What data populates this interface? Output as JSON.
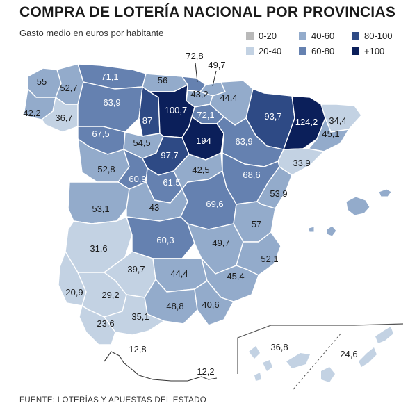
{
  "title": "COMPRA DE LOTERÍA NACIONAL POR PROVINCIAS",
  "subtitle": "Gasto medio en euros por habitante",
  "source": "FUENTE: LOTERÍAS Y APUESTAS DEL ESTADO",
  "legend": [
    {
      "label": "0-20",
      "color": "#b9b9b9"
    },
    {
      "label": "20-40",
      "color": "#c3d2e3"
    },
    {
      "label": "40-60",
      "color": "#93abcb"
    },
    {
      "label": "60-80",
      "color": "#6581b0"
    },
    {
      "label": "80-100",
      "color": "#2e4a85"
    },
    {
      "label": "+100",
      "color": "#0b1f5a"
    }
  ],
  "colors": {
    "sea": "#ffffff",
    "border": "#ffffff",
    "canary_frame": "#555555"
  },
  "regions": [
    {
      "id": "a-coruna",
      "value": "55",
      "bin": "40-60"
    },
    {
      "id": "lugo",
      "value": "52,7",
      "bin": "40-60"
    },
    {
      "id": "pontevedra",
      "value": "42,2",
      "bin": "40-60"
    },
    {
      "id": "ourense",
      "value": "36,7",
      "bin": "20-40"
    },
    {
      "id": "asturias",
      "value": "71,1",
      "bin": "60-80"
    },
    {
      "id": "cantabria",
      "value": "56",
      "bin": "40-60"
    },
    {
      "id": "bizkaia",
      "value": "72,8",
      "bin": "60-80"
    },
    {
      "id": "gipuzkoa",
      "value": "49,7",
      "bin": "40-60"
    },
    {
      "id": "alava",
      "value": "43,2",
      "bin": "40-60"
    },
    {
      "id": "navarra",
      "value": "44,4",
      "bin": "40-60"
    },
    {
      "id": "leon",
      "value": "63,9",
      "bin": "60-80"
    },
    {
      "id": "palencia",
      "value": "87",
      "bin": "80-100"
    },
    {
      "id": "burgos",
      "value": "100,7",
      "bin": "+100"
    },
    {
      "id": "la-rioja",
      "value": "72,1",
      "bin": "60-80"
    },
    {
      "id": "huesca",
      "value": "93,7",
      "bin": "80-100"
    },
    {
      "id": "lleida",
      "value": "124,2",
      "bin": "+100"
    },
    {
      "id": "girona",
      "value": "34,4",
      "bin": "20-40"
    },
    {
      "id": "barcelona",
      "value": "45,1",
      "bin": "40-60"
    },
    {
      "id": "zamora",
      "value": "67,5",
      "bin": "60-80"
    },
    {
      "id": "valladolid",
      "value": "54,5",
      "bin": "40-60"
    },
    {
      "id": "soria",
      "value": "194",
      "bin": "+100"
    },
    {
      "id": "zaragoza",
      "value": "63,9",
      "bin": "60-80"
    },
    {
      "id": "tarragona",
      "value": "33,9",
      "bin": "20-40"
    },
    {
      "id": "segovia",
      "value": "97,7",
      "bin": "80-100"
    },
    {
      "id": "salamanca",
      "value": "52,8",
      "bin": "40-60"
    },
    {
      "id": "avila",
      "value": "60,9",
      "bin": "60-80"
    },
    {
      "id": "madrid",
      "value": "61,5",
      "bin": "60-80"
    },
    {
      "id": "guadalajara",
      "value": "42,5",
      "bin": "40-60"
    },
    {
      "id": "teruel",
      "value": "68,6",
      "bin": "60-80"
    },
    {
      "id": "castellon",
      "value": "53,9",
      "bin": "40-60"
    },
    {
      "id": "caceres",
      "value": "53,1",
      "bin": "40-60"
    },
    {
      "id": "toledo",
      "value": "43",
      "bin": "40-60"
    },
    {
      "id": "cuenca",
      "value": "69,6",
      "bin": "60-80"
    },
    {
      "id": "valencia",
      "value": "57",
      "bin": "40-60"
    },
    {
      "id": "badajoz",
      "value": "31,6",
      "bin": "20-40"
    },
    {
      "id": "ciudad-real",
      "value": "60,3",
      "bin": "60-80"
    },
    {
      "id": "albacete",
      "value": "49,7",
      "bin": "40-60"
    },
    {
      "id": "alicante",
      "value": "52,1",
      "bin": "40-60"
    },
    {
      "id": "cordoba",
      "value": "39,7",
      "bin": "20-40"
    },
    {
      "id": "jaen",
      "value": "44,4",
      "bin": "40-60"
    },
    {
      "id": "murcia",
      "value": "45,4",
      "bin": "40-60"
    },
    {
      "id": "huelva",
      "value": "20,9",
      "bin": "20-40"
    },
    {
      "id": "sevilla",
      "value": "29,2",
      "bin": "20-40"
    },
    {
      "id": "granada",
      "value": "48,8",
      "bin": "40-60"
    },
    {
      "id": "almeria",
      "value": "40,6",
      "bin": "40-60"
    },
    {
      "id": "cadiz",
      "value": "23,6",
      "bin": "20-40"
    },
    {
      "id": "malaga",
      "value": "35,1",
      "bin": "20-40"
    },
    {
      "id": "ceuta",
      "value": "12,8",
      "bin": "0-20"
    },
    {
      "id": "melilla",
      "value": "12,2",
      "bin": "0-20"
    },
    {
      "id": "las-palmas",
      "value": "24,6",
      "bin": "20-40"
    },
    {
      "id": "santa-cruz-de-tenerife",
      "value": "36,8",
      "bin": "20-40"
    }
  ]
}
